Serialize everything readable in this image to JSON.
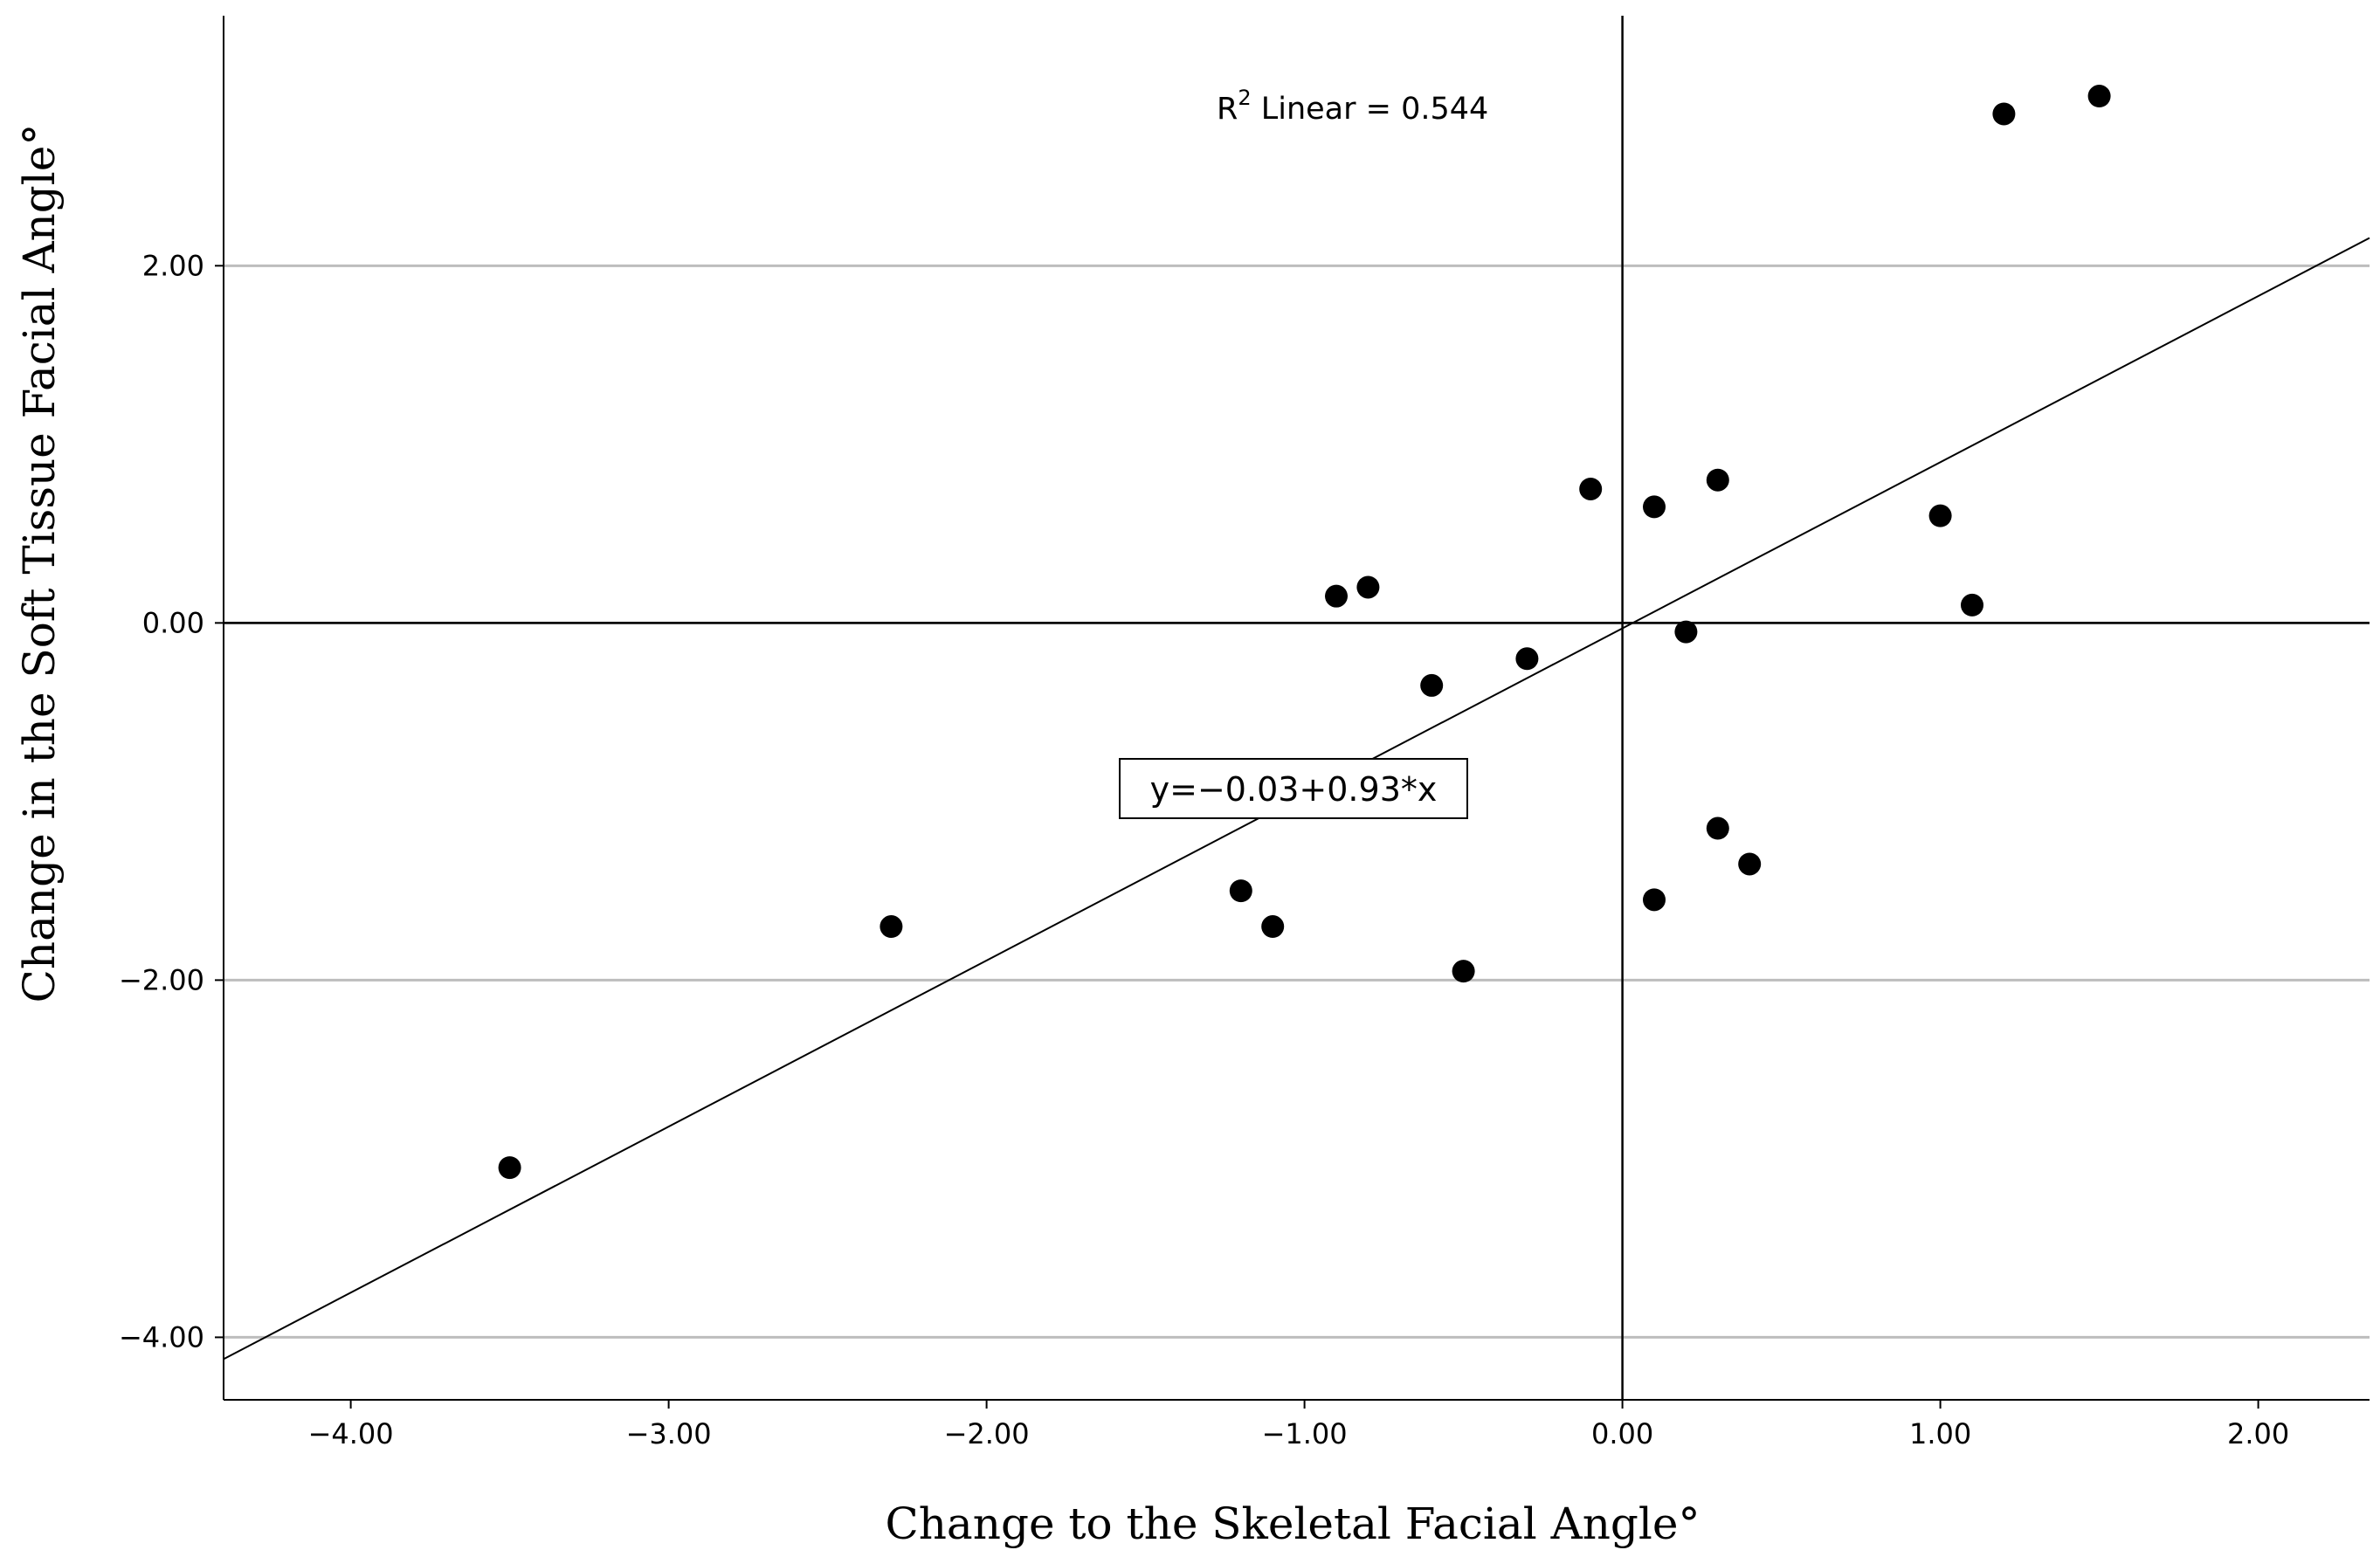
{
  "chart_data": {
    "type": "scatter",
    "title": "",
    "xlabel": "Change to the Skeletal Facial Angle°",
    "ylabel": "Change in the Soft Tissue Facial Angle°",
    "xlim": [
      -4.4,
      2.35
    ],
    "ylim": [
      -4.35,
      3.4
    ],
    "x_ticks": [
      -4,
      -3,
      -2,
      -1,
      0,
      1,
      2
    ],
    "x_tick_labels": [
      "-4.00",
      "-3.00",
      "-2.00",
      "-1.00",
      "0.00",
      "1.00",
      "2.00"
    ],
    "y_ticks": [
      -4,
      -2,
      0,
      2
    ],
    "y_tick_labels": [
      "-4.00",
      "-2.00",
      "0.00",
      "2.00"
    ],
    "grid": "horizontal",
    "reference_lines": {
      "x": 0,
      "y": 0
    },
    "series": [
      {
        "points": [
          {
            "x": -3.5,
            "y": -3.05
          },
          {
            "x": -2.3,
            "y": -1.7
          },
          {
            "x": -1.2,
            "y": -1.5
          },
          {
            "x": -1.1,
            "y": -1.7
          },
          {
            "x": -0.9,
            "y": 0.15
          },
          {
            "x": -0.8,
            "y": 0.2
          },
          {
            "x": -0.6,
            "y": -0.35
          },
          {
            "x": -0.5,
            "y": -1.95
          },
          {
            "x": -0.3,
            "y": -0.2
          },
          {
            "x": -0.1,
            "y": 0.75
          },
          {
            "x": 0.1,
            "y": 0.65
          },
          {
            "x": 0.1,
            "y": -1.55
          },
          {
            "x": 0.2,
            "y": -0.05
          },
          {
            "x": 0.3,
            "y": 0.8
          },
          {
            "x": 0.3,
            "y": -1.15
          },
          {
            "x": 0.4,
            "y": -1.35
          },
          {
            "x": 1.0,
            "y": 0.6
          },
          {
            "x": 1.1,
            "y": 0.1
          },
          {
            "x": 1.2,
            "y": 2.85
          },
          {
            "x": 1.5,
            "y": 2.95
          }
        ]
      }
    ],
    "fit_line": {
      "intercept": -0.03,
      "slope": 0.93
    },
    "annotations": {
      "r2_prefix": "R",
      "r2_sup": "2",
      "r2_text": " Linear = 0.544",
      "equation": "y=−0.03+0.93*x"
    }
  }
}
